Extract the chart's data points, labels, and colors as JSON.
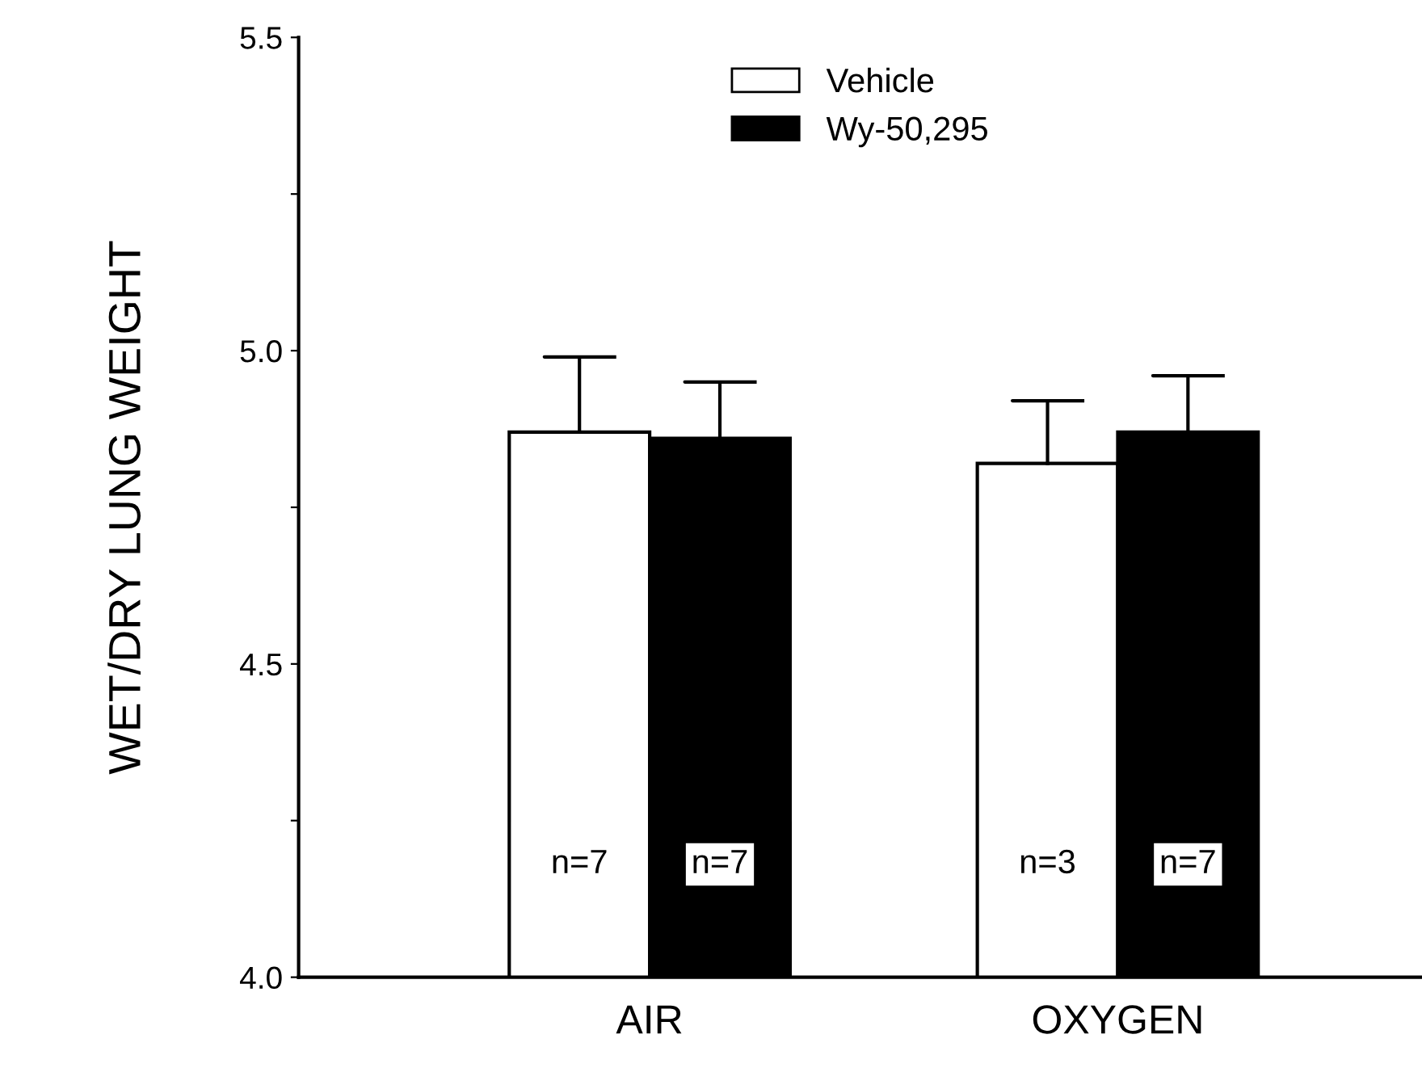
{
  "chart_data": {
    "type": "bar",
    "ylabel": "WET/DRY LUNG WEIGHT",
    "categories": [
      "AIR",
      "OXYGEN"
    ],
    "series": [
      {
        "name": "Vehicle",
        "color": "#ffffff",
        "values": [
          4.87,
          4.82
        ],
        "errors": [
          [
            4.87,
            4.99
          ],
          [
            4.82,
            4.92
          ]
        ]
      },
      {
        "name": "Wy-50,295",
        "color": "#000000",
        "values": [
          4.86,
          4.87
        ],
        "errors": [
          [
            4.86,
            4.95
          ],
          [
            4.87,
            4.96
          ]
        ]
      }
    ],
    "ylim": [
      4.0,
      5.5
    ],
    "yticks": [
      {
        "value": 4.0,
        "label": "4.0"
      },
      {
        "value": 4.25,
        "label": null
      },
      4.5,
      {
        "value": 4.75,
        "label": null
      },
      {
        "value": 5.0,
        "label": "5.0"
      },
      {
        "value": 5.25,
        "label": null
      },
      5.5
    ],
    "annotations": [
      {
        "text": "n=7",
        "x": "AIR",
        "y": 4.18
      },
      {
        "text": "n=7",
        "x": "AIR",
        "y": 4.18
      },
      {
        "text": "n=3",
        "x": "OXYGEN",
        "y": 4.18
      },
      {
        "text": "n=7",
        "x": "OXYGEN",
        "y": 4.18
      }
    ],
    "legend": "top",
    "grid": false
  }
}
